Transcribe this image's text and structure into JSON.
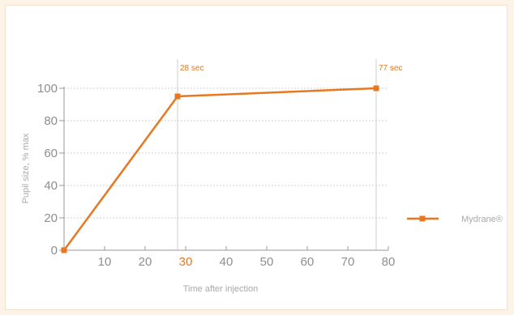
{
  "chart_data": {
    "type": "line",
    "xlabel": "Time after injection",
    "ylabel": "Pupil size, % max",
    "xlim": [
      0,
      80
    ],
    "ylim": [
      0,
      100
    ],
    "x_ticks": [
      10,
      20,
      30,
      40,
      50,
      60,
      70,
      80
    ],
    "x_tick_labels": [
      "10",
      "20",
      "30",
      "40",
      "50",
      "60",
      "70",
      "80"
    ],
    "highlighted_x_tick": 30,
    "y_ticks": [
      0,
      20,
      40,
      60,
      80,
      100
    ],
    "y_tick_labels": [
      "0",
      "20",
      "40",
      "60",
      "80",
      "100"
    ],
    "grid": "horizontal dashed",
    "legend_position": "right",
    "annotations": [
      {
        "x": 28,
        "label": "28 sec"
      },
      {
        "x": 77,
        "label": "77 sec"
      }
    ],
    "series": [
      {
        "name": "Mydrane®",
        "color": "#e87722",
        "marker": "square",
        "x": [
          0,
          28,
          77
        ],
        "y": [
          0,
          95,
          100
        ]
      }
    ]
  },
  "colors": {
    "accent": "#e87722",
    "axis": "#9a9a9a",
    "grid": "#cfcfcf",
    "background": "#fdf3e7"
  }
}
